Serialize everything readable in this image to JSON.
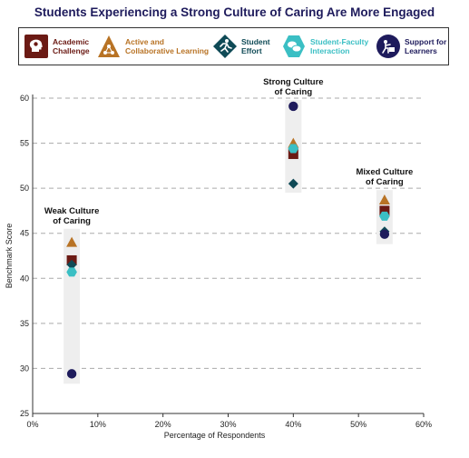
{
  "chart_data": {
    "type": "scatter",
    "title": "Students Experiencing a Strong Culture of Caring Are More Engaged",
    "xlabel": "Percentage of Respondents",
    "ylabel": "Benchmark Score",
    "xlim": [
      0,
      60
    ],
    "ylim": [
      25,
      60
    ],
    "x_ticks": [
      "0%",
      "10%",
      "20%",
      "30%",
      "40%",
      "50%",
      "60%"
    ],
    "y_ticks": [
      "25",
      "30",
      "35",
      "40",
      "45",
      "50",
      "55",
      "60"
    ],
    "grid": "horizontal dashed",
    "legend_position": "top",
    "groups": [
      {
        "label": "Weak Culture\nof Caring",
        "x": 6,
        "range": [
          28.3,
          45.5
        ]
      },
      {
        "label": "Strong Culture\nof Caring",
        "x": 40,
        "range": [
          49.5,
          59.8
        ]
      },
      {
        "label": "Mixed Culture\nof Caring",
        "x": 54,
        "range": [
          43.8,
          49.8
        ]
      }
    ],
    "series": [
      {
        "name": "Academic Challenge",
        "color": "#6b1a14",
        "marker": "square",
        "x": [
          6,
          40,
          54
        ],
        "y": [
          42.0,
          53.8,
          47.5
        ]
      },
      {
        "name": "Active and Collaborative Learning",
        "color": "#b87325",
        "marker": "triangle",
        "x": [
          6,
          40,
          54
        ],
        "y": [
          44.0,
          55.0,
          48.7
        ]
      },
      {
        "name": "Student Effort",
        "color": "#0f4a56",
        "marker": "diamond",
        "x": [
          6,
          40,
          54
        ],
        "y": [
          41.5,
          50.5,
          45.2
        ]
      },
      {
        "name": "Student-Faculty Interaction",
        "color": "#3bbfc4",
        "marker": "hexagon",
        "x": [
          6,
          40,
          54
        ],
        "y": [
          40.7,
          54.4,
          46.9
        ]
      },
      {
        "name": "Support for Learners",
        "color": "#1e1b5c",
        "marker": "circle",
        "x": [
          6,
          40,
          54
        ],
        "y": [
          29.4,
          59.1,
          44.9
        ]
      }
    ]
  },
  "legend": {
    "items": [
      {
        "label": "Academic\nChallenge",
        "icon": "brain-icon",
        "color": "#6b1a14"
      },
      {
        "label": "Active and\nCollaborative Learning",
        "icon": "network-icon",
        "color": "#b87325"
      },
      {
        "label": "Student\nEffort",
        "icon": "runner-icon",
        "color": "#0f4a56"
      },
      {
        "label": "Student-Faculty\nInteraction",
        "icon": "chat-icon",
        "color": "#3bbfc4"
      },
      {
        "label": "Support for\nLearners",
        "icon": "support-icon",
        "color": "#1e1b5c"
      }
    ]
  }
}
